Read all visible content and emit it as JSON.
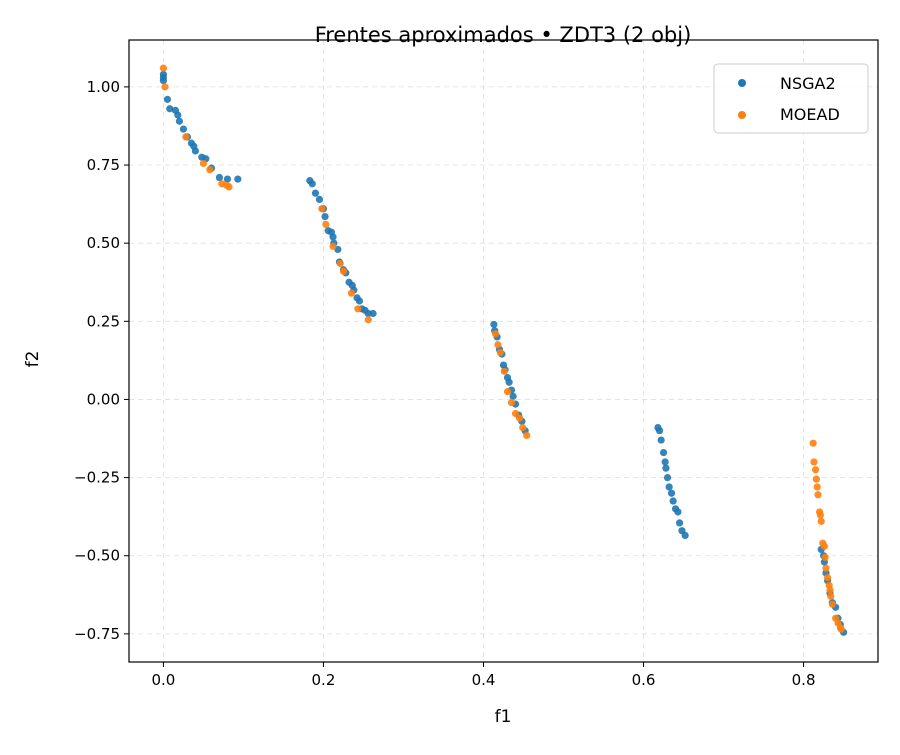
{
  "chart_data": {
    "type": "scatter",
    "title": "Frentes aproximados • ZDT3 (2 obj)",
    "xlabel": "f1",
    "ylabel": "f2",
    "xlim": [
      -0.043,
      0.893
    ],
    "ylim": [
      -0.84,
      1.15
    ],
    "xticks": [
      0.0,
      0.2,
      0.4,
      0.6,
      0.8
    ],
    "xtick_labels": [
      "0.0",
      "0.2",
      "0.4",
      "0.6",
      "0.8"
    ],
    "yticks": [
      1.0,
      0.75,
      0.5,
      0.25,
      0.0,
      -0.25,
      -0.5,
      -0.75
    ],
    "ytick_labels": [
      "1.00",
      "0.75",
      "0.50",
      "0.25",
      "0.00",
      "−0.25",
      "−0.50",
      "−0.75"
    ],
    "grid": true,
    "legend_position": "upper right",
    "series": [
      {
        "name": "NSGA2",
        "color": "#1f77b4",
        "points": [
          [
            0.0,
            1.04
          ],
          [
            0.0,
            1.03
          ],
          [
            0.0,
            1.02
          ],
          [
            0.005,
            0.96
          ],
          [
            0.008,
            0.93
          ],
          [
            0.015,
            0.925
          ],
          [
            0.018,
            0.91
          ],
          [
            0.02,
            0.89
          ],
          [
            0.025,
            0.865
          ],
          [
            0.03,
            0.84
          ],
          [
            0.035,
            0.82
          ],
          [
            0.038,
            0.81
          ],
          [
            0.04,
            0.795
          ],
          [
            0.048,
            0.775
          ],
          [
            0.053,
            0.77
          ],
          [
            0.06,
            0.74
          ],
          [
            0.07,
            0.71
          ],
          [
            0.08,
            0.705
          ],
          [
            0.093,
            0.705
          ],
          [
            0.183,
            0.7
          ],
          [
            0.186,
            0.69
          ],
          [
            0.19,
            0.66
          ],
          [
            0.195,
            0.64
          ],
          [
            0.2,
            0.61
          ],
          [
            0.202,
            0.585
          ],
          [
            0.206,
            0.54
          ],
          [
            0.21,
            0.535
          ],
          [
            0.212,
            0.52
          ],
          [
            0.213,
            0.5
          ],
          [
            0.218,
            0.48
          ],
          [
            0.22,
            0.44
          ],
          [
            0.225,
            0.415
          ],
          [
            0.228,
            0.405
          ],
          [
            0.232,
            0.375
          ],
          [
            0.236,
            0.365
          ],
          [
            0.238,
            0.35
          ],
          [
            0.242,
            0.325
          ],
          [
            0.245,
            0.315
          ],
          [
            0.248,
            0.29
          ],
          [
            0.252,
            0.285
          ],
          [
            0.256,
            0.275
          ],
          [
            0.262,
            0.275
          ],
          [
            0.413,
            0.24
          ],
          [
            0.414,
            0.22
          ],
          [
            0.417,
            0.2
          ],
          [
            0.42,
            0.16
          ],
          [
            0.423,
            0.145
          ],
          [
            0.425,
            0.11
          ],
          [
            0.427,
            0.095
          ],
          [
            0.43,
            0.07
          ],
          [
            0.432,
            0.055
          ],
          [
            0.435,
            0.03
          ],
          [
            0.437,
            0.01
          ],
          [
            0.44,
            -0.015
          ],
          [
            0.444,
            -0.05
          ],
          [
            0.448,
            -0.07
          ],
          [
            0.452,
            -0.1
          ],
          [
            0.618,
            -0.09
          ],
          [
            0.62,
            -0.1
          ],
          [
            0.622,
            -0.13
          ],
          [
            0.625,
            -0.17
          ],
          [
            0.627,
            -0.2
          ],
          [
            0.628,
            -0.22
          ],
          [
            0.63,
            -0.25
          ],
          [
            0.632,
            -0.28
          ],
          [
            0.635,
            -0.3
          ],
          [
            0.637,
            -0.325
          ],
          [
            0.64,
            -0.35
          ],
          [
            0.643,
            -0.36
          ],
          [
            0.645,
            -0.395
          ],
          [
            0.648,
            -0.42
          ],
          [
            0.652,
            -0.435
          ],
          [
            0.822,
            -0.48
          ],
          [
            0.825,
            -0.5
          ],
          [
            0.826,
            -0.52
          ],
          [
            0.828,
            -0.555
          ],
          [
            0.83,
            -0.58
          ],
          [
            0.833,
            -0.62
          ],
          [
            0.836,
            -0.65
          ],
          [
            0.84,
            -0.665
          ],
          [
            0.843,
            -0.7
          ],
          [
            0.846,
            -0.72
          ],
          [
            0.85,
            -0.745
          ]
        ]
      },
      {
        "name": "MOEAD",
        "color": "#ff7f0e",
        "points": [
          [
            0.0,
            1.06
          ],
          [
            0.002,
            1.0
          ],
          [
            0.028,
            0.84
          ],
          [
            0.05,
            0.755
          ],
          [
            0.058,
            0.735
          ],
          [
            0.073,
            0.69
          ],
          [
            0.079,
            0.685
          ],
          [
            0.082,
            0.68
          ],
          [
            0.198,
            0.61
          ],
          [
            0.203,
            0.56
          ],
          [
            0.212,
            0.49
          ],
          [
            0.221,
            0.435
          ],
          [
            0.225,
            0.41
          ],
          [
            0.235,
            0.34
          ],
          [
            0.243,
            0.29
          ],
          [
            0.256,
            0.255
          ],
          [
            0.415,
            0.21
          ],
          [
            0.418,
            0.175
          ],
          [
            0.421,
            0.15
          ],
          [
            0.426,
            0.09
          ],
          [
            0.43,
            0.025
          ],
          [
            0.435,
            -0.01
          ],
          [
            0.44,
            -0.045
          ],
          [
            0.445,
            -0.06
          ],
          [
            0.449,
            -0.09
          ],
          [
            0.454,
            -0.115
          ],
          [
            0.812,
            -0.14
          ],
          [
            0.813,
            -0.2
          ],
          [
            0.815,
            -0.225
          ],
          [
            0.816,
            -0.255
          ],
          [
            0.817,
            -0.28
          ],
          [
            0.818,
            -0.305
          ],
          [
            0.82,
            -0.36
          ],
          [
            0.821,
            -0.37
          ],
          [
            0.822,
            -0.39
          ],
          [
            0.824,
            -0.46
          ],
          [
            0.826,
            -0.47
          ],
          [
            0.827,
            -0.505
          ],
          [
            0.828,
            -0.54
          ],
          [
            0.83,
            -0.57
          ],
          [
            0.832,
            -0.595
          ],
          [
            0.833,
            -0.61
          ],
          [
            0.834,
            -0.63
          ],
          [
            0.836,
            -0.655
          ],
          [
            0.84,
            -0.7
          ],
          [
            0.843,
            -0.715
          ],
          [
            0.846,
            -0.73
          ],
          [
            0.847,
            -0.735
          ]
        ]
      }
    ]
  }
}
